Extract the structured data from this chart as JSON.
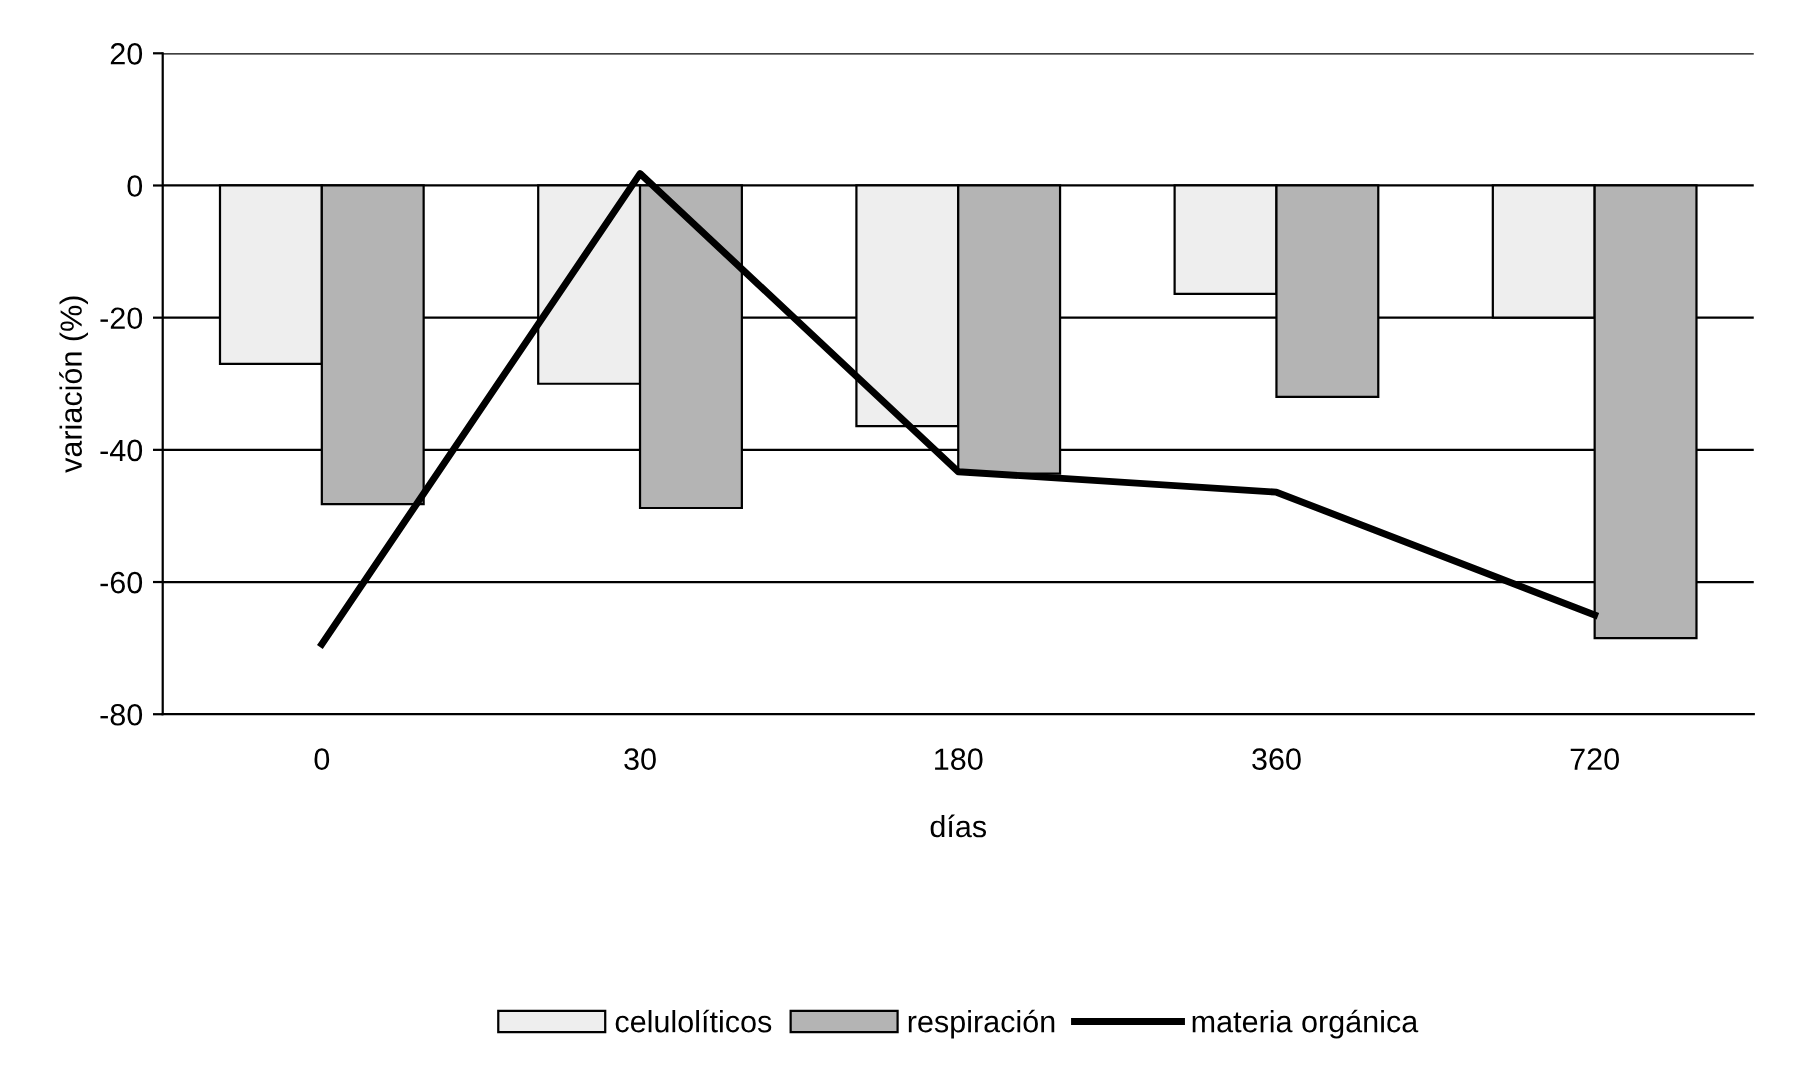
{
  "chart_data": {
    "type": "bar",
    "xlabel": "días",
    "ylabel": "variación (%)",
    "categories": [
      "0",
      "30",
      "180",
      "360",
      "720"
    ],
    "series": [
      {
        "name": "celulolíticos",
        "color": "#eeeeee",
        "values": [
          -27,
          -30,
          -36.4,
          -16.4,
          -20
        ]
      },
      {
        "name": "respiración",
        "color": "#b4b4b4",
        "values": [
          -48.2,
          -48.8,
          -43.6,
          -32,
          -68.5
        ]
      },
      {
        "name": "materia orgánica",
        "type": "line",
        "color": "#000000",
        "values": [
          -69.4,
          1.8,
          -43.3,
          -46.4,
          -65
        ]
      }
    ],
    "ylim": [
      -80,
      20
    ],
    "yticks": [
      -80,
      -60,
      -40,
      -20,
      0,
      20
    ],
    "grid": "y",
    "legend": "bottom",
    "marker": "none",
    "line_style": "solid"
  }
}
